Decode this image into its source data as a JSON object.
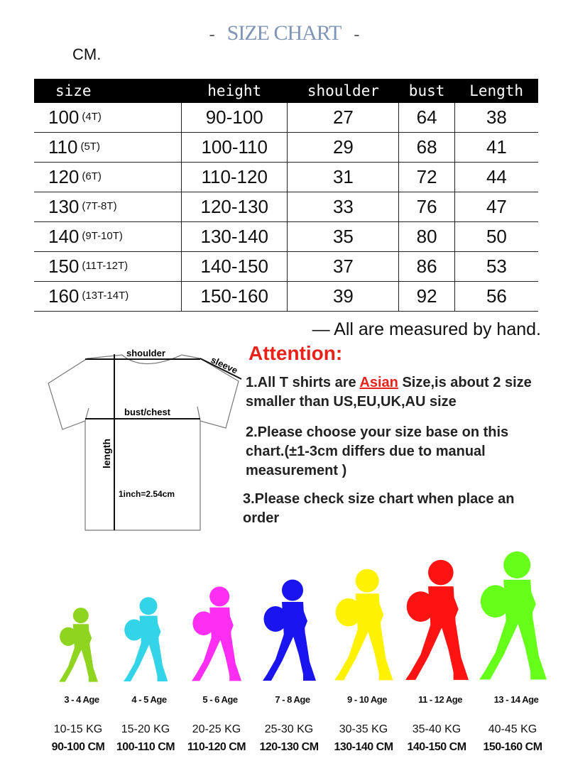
{
  "title": "SIZE CHART",
  "unit": "CM.",
  "table": {
    "headers": [
      "size",
      "height",
      "shoulder",
      "bust",
      "Length"
    ],
    "rows": [
      {
        "size": "100",
        "tag": "(4T)",
        "height": "90-100",
        "shoulder": "27",
        "bust": "64",
        "length": "38"
      },
      {
        "size": "110",
        "tag": "(5T)",
        "height": "100-110",
        "shoulder": "29",
        "bust": "68",
        "length": "41"
      },
      {
        "size": "120",
        "tag": "(6T)",
        "height": "110-120",
        "shoulder": "31",
        "bust": "72",
        "length": "44"
      },
      {
        "size": "130",
        "tag": "(7T-8T)",
        "height": "120-130",
        "shoulder": "33",
        "bust": "76",
        "length": "47"
      },
      {
        "size": "140",
        "tag": "(9T-10T)",
        "height": "130-140",
        "shoulder": "35",
        "bust": "80",
        "length": "50"
      },
      {
        "size": "150",
        "tag": "(11T-12T)",
        "height": "140-150",
        "shoulder": "37",
        "bust": "86",
        "length": "53"
      },
      {
        "size": "160",
        "tag": "(13T-14T)",
        "height": "150-160",
        "shoulder": "39",
        "bust": "92",
        "length": "56"
      }
    ]
  },
  "note": "— All are measured by hand.",
  "diagram": {
    "shoulder": "shoulder",
    "sleeve": "sleeve",
    "bust": "bust/chest",
    "length": "length",
    "inch": "1inch=2.54cm"
  },
  "attention": {
    "title": "Attention:",
    "p1a": "1.All T shirts are ",
    "p1b": "Asian",
    "p1c": " Size,is about 2 size smaller than US,EU,UK,AU size",
    "p2": "2.Please choose your size base on this chart.(±1-3cm differs due to manual measurement )",
    "p3": "3.Please check size chart when place an order"
  },
  "kids": [
    {
      "age": "3 - 4 Age",
      "kg": "10-15 KG",
      "cm": "90-100 CM",
      "color": "#8fd41e"
    },
    {
      "age": "4 - 5 Age",
      "kg": "15-20 KG",
      "cm": "100-110 CM",
      "color": "#33d4e8"
    },
    {
      "age": "5 - 6 Age",
      "kg": "20-25 KG",
      "cm": "110-120 CM",
      "color": "#ff2ef2"
    },
    {
      "age": "7 - 8 Age",
      "kg": "25-30 KG",
      "cm": "120-130 CM",
      "color": "#1a14f0"
    },
    {
      "age": "9 - 10 Age",
      "kg": "30-35 KG",
      "cm": "130-140 CM",
      "color": "#fff200"
    },
    {
      "age": "11 - 12 Age",
      "kg": "35-40 KG",
      "cm": "140-150 CM",
      "color": "#ff1212"
    },
    {
      "age": "13 - 14 Age",
      "kg": "40-45 KG",
      "cm": "150-160 CM",
      "color": "#66ff1a"
    }
  ]
}
